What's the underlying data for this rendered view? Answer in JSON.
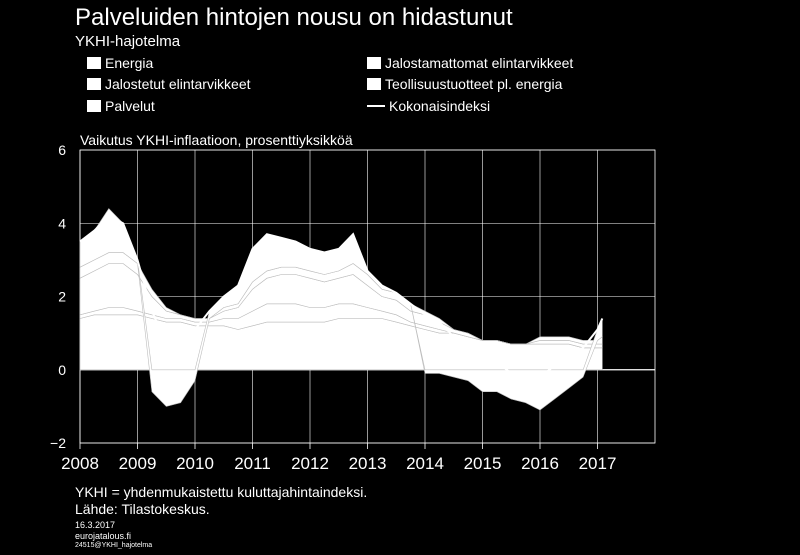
{
  "title": "Palveluiden hintojen nousu on hidastunut",
  "subtitle": "YKHI-hajotelma",
  "legend": [
    "Energia",
    "Jalostamattomat elintarvikkeet",
    "Jalostetut elintarvikkeet",
    "Teollisuustuotteet pl. energia",
    "Palvelut",
    "Kokonaisindeksi"
  ],
  "ylabel": "Vaikutus YKHI-inflaatioon, prosenttiyksikköä",
  "notes": {
    "definition": "YKHI = yhdenmukaistettu kuluttajahintaindeksi.",
    "source": "Lähde: Tilastokeskus.",
    "date": "16.3.2017",
    "site": "eurojatalous.fi",
    "code": "24515@YKHI_hajotelma"
  },
  "colors": {
    "background": "#000000",
    "series": "#ffffff",
    "grid": "#ffffff"
  },
  "chart_data": {
    "type": "area",
    "stacked": true,
    "grid": true,
    "ylim": [
      -2,
      6
    ],
    "yticks": [
      -2,
      0,
      2,
      4,
      6
    ],
    "xticks": [
      "2008",
      "2009",
      "2010",
      "2011",
      "2012",
      "2013",
      "2014",
      "2015",
      "2016",
      "2017"
    ],
    "x": [
      "2008-01",
      "2008-04",
      "2008-07",
      "2008-10",
      "2009-01",
      "2009-04",
      "2009-07",
      "2009-10",
      "2010-01",
      "2010-04",
      "2010-07",
      "2010-10",
      "2011-01",
      "2011-04",
      "2011-07",
      "2011-10",
      "2012-01",
      "2012-04",
      "2012-07",
      "2012-10",
      "2013-01",
      "2013-04",
      "2013-07",
      "2013-10",
      "2014-01",
      "2014-04",
      "2014-07",
      "2014-10",
      "2015-01",
      "2015-04",
      "2015-07",
      "2015-10",
      "2016-01",
      "2016-04",
      "2016-07",
      "2016-10",
      "2017-01",
      "2017-02"
    ],
    "series": [
      {
        "name": "Palvelut",
        "values": [
          1.4,
          1.5,
          1.5,
          1.5,
          1.5,
          1.4,
          1.3,
          1.3,
          1.2,
          1.2,
          1.2,
          1.1,
          1.2,
          1.3,
          1.3,
          1.3,
          1.3,
          1.3,
          1.4,
          1.4,
          1.4,
          1.4,
          1.3,
          1.2,
          1.1,
          1.0,
          1.0,
          0.9,
          0.8,
          0.8,
          0.7,
          0.7,
          0.7,
          0.7,
          0.7,
          0.6,
          0.6,
          0.6
        ]
      },
      {
        "name": "Teollisuustuotteet pl. energia",
        "values": [
          0.1,
          0.1,
          0.2,
          0.2,
          0.1,
          0.1,
          0.1,
          0.1,
          0.1,
          0.1,
          0.2,
          0.3,
          0.4,
          0.5,
          0.5,
          0.5,
          0.4,
          0.4,
          0.4,
          0.4,
          0.3,
          0.2,
          0.2,
          0.1,
          0.1,
          0.1,
          0.0,
          0.0,
          0.0,
          0.0,
          0.0,
          0.0,
          0.0,
          0.0,
          0.0,
          0.0,
          0.0,
          0.0
        ]
      },
      {
        "name": "Jalostetut elintarvikkeet",
        "values": [
          1.0,
          1.1,
          1.2,
          1.2,
          1.0,
          0.5,
          0.2,
          0.1,
          0.1,
          0.1,
          0.2,
          0.3,
          0.6,
          0.7,
          0.8,
          0.8,
          0.8,
          0.7,
          0.7,
          0.8,
          0.6,
          0.4,
          0.4,
          0.3,
          0.3,
          0.2,
          0.1,
          0.1,
          0.0,
          0.0,
          0.0,
          0.0,
          0.1,
          0.1,
          0.1,
          0.1,
          0.1,
          0.1
        ]
      },
      {
        "name": "Jalostamattomat elintarvikkeet",
        "values": [
          0.3,
          0.3,
          0.3,
          0.3,
          0.3,
          0.2,
          0.1,
          0.0,
          0.0,
          0.0,
          0.1,
          0.1,
          0.2,
          0.2,
          0.2,
          0.2,
          0.2,
          0.2,
          0.2,
          0.3,
          0.3,
          0.2,
          0.2,
          0.2,
          0.1,
          0.1,
          0.0,
          0.0,
          0.0,
          0.0,
          0.0,
          0.0,
          0.1,
          0.1,
          0.1,
          0.1,
          0.1,
          0.2
        ]
      },
      {
        "name": "Energia",
        "values": [
          0.7,
          0.8,
          1.2,
          0.8,
          0.1,
          -0.6,
          -1.0,
          -0.9,
          -0.3,
          0.2,
          0.3,
          0.5,
          0.9,
          1.0,
          0.8,
          0.7,
          0.6,
          0.6,
          0.6,
          0.8,
          0.1,
          0.1,
          0.0,
          0.0,
          -0.1,
          -0.1,
          -0.2,
          -0.3,
          -0.6,
          -0.6,
          -0.8,
          -0.9,
          -1.1,
          -0.8,
          -0.5,
          -0.2,
          0.3,
          0.5
        ]
      }
    ],
    "total": {
      "name": "Kokonaisindeksi",
      "values": [
        3.5,
        3.8,
        4.2,
        4.0,
        3.0,
        1.6,
        0.7,
        0.6,
        1.1,
        1.6,
        2.0,
        2.3,
        3.3,
        3.7,
        3.6,
        3.5,
        3.3,
        3.2,
        3.3,
        3.7,
        2.7,
        2.3,
        2.1,
        1.8,
        1.5,
        1.3,
        0.9,
        0.7,
        0.2,
        0.2,
        -0.1,
        -0.2,
        -0.2,
        0.1,
        0.4,
        0.6,
        1.1,
        1.4
      ]
    }
  }
}
